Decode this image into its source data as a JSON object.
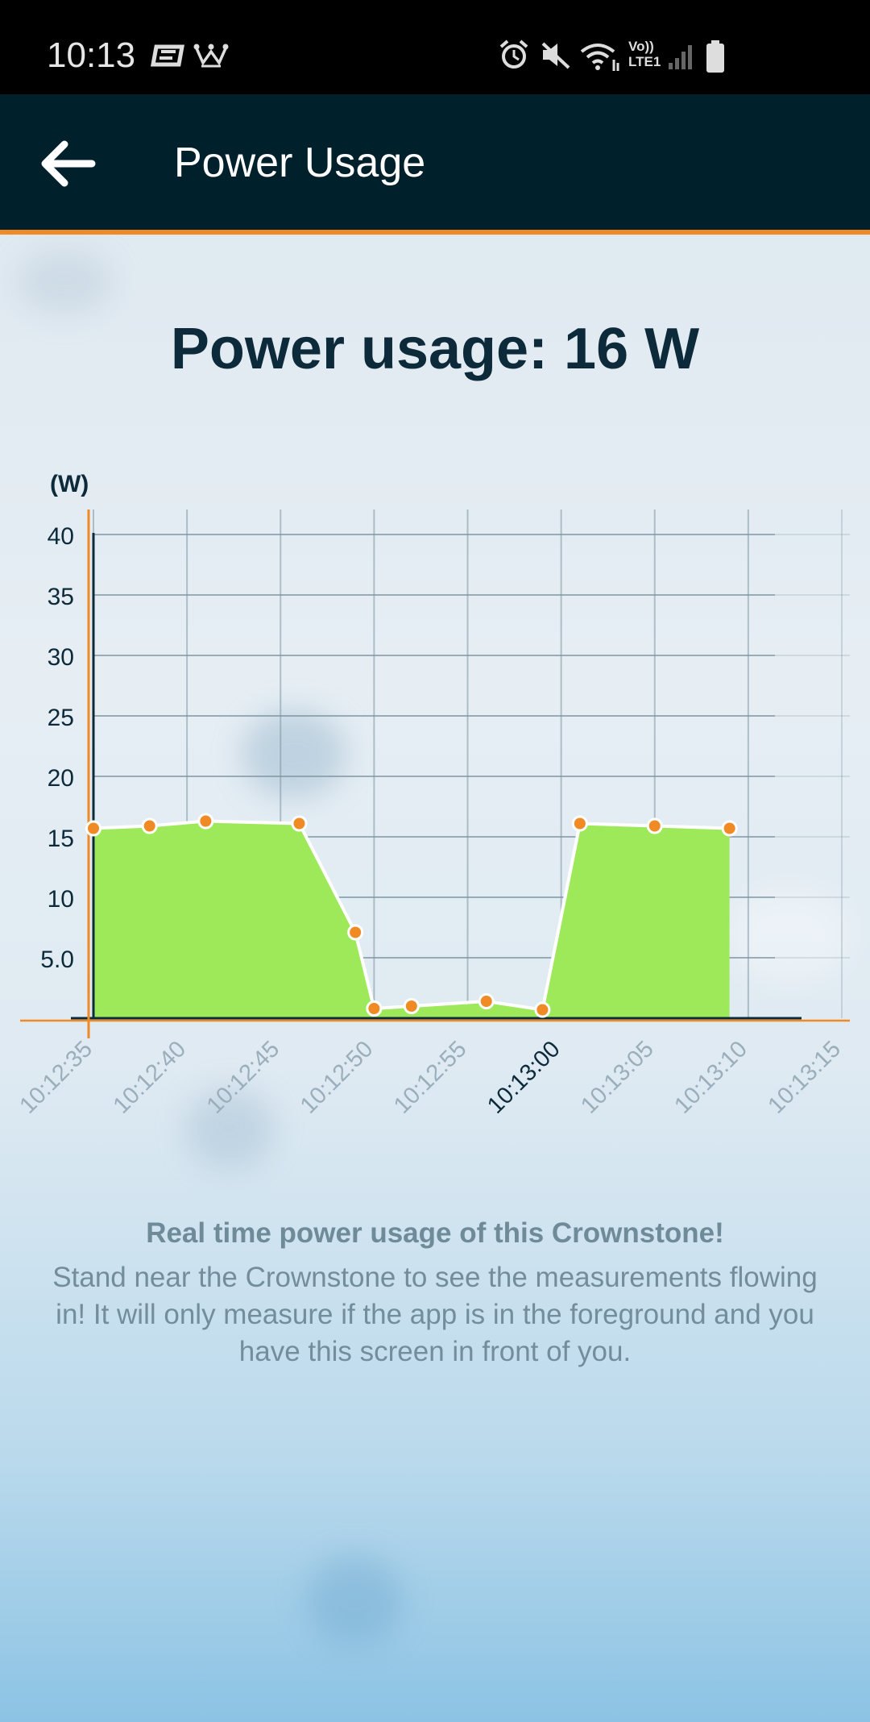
{
  "status_bar": {
    "time": "10:13",
    "network_label_top": "Vo))",
    "network_label_bottom": "LTE1"
  },
  "app_bar": {
    "title": "Power Usage",
    "back_icon": "arrow-left-icon"
  },
  "headline": "Power usage: 16 W",
  "chart_data": {
    "type": "area",
    "ylabel": "(W)",
    "ylim": [
      0,
      40
    ],
    "yticks": [
      "5.0",
      "10",
      "15",
      "20",
      "25",
      "30",
      "35",
      "40"
    ],
    "ytick_values": [
      5,
      10,
      15,
      20,
      25,
      30,
      35,
      40
    ],
    "xlim": [
      "10:12:35",
      "10:13:15"
    ],
    "xticks": [
      "10:12:35",
      "10:12:40",
      "10:12:45",
      "10:12:50",
      "10:12:55",
      "10:13:00",
      "10:13:05",
      "10:13:10",
      "10:13:15"
    ],
    "highlighted_xtick": "10:13:00",
    "x": [
      "10:12:35",
      "10:12:38",
      "10:12:41",
      "10:12:46",
      "10:12:49",
      "10:12:50",
      "10:12:52",
      "10:12:56",
      "10:12:59",
      "10:13:01",
      "10:13:05",
      "10:13:09"
    ],
    "series": [
      {
        "values": [
          15.7,
          15.9,
          16.3,
          16.1,
          7.1,
          0.8,
          1.0,
          1.4,
          0.7,
          16.1,
          15.9,
          15.7
        ]
      }
    ],
    "grid": true,
    "colors": {
      "fill": "#9ee95a",
      "line": "#ffffff",
      "point": "#f08a24",
      "axis_accent": "#f08a24",
      "grid": "#7f96a3",
      "tick_text": "#0c2a3a",
      "muted_tick_text": "#9aaebb"
    }
  },
  "description": {
    "title": "Real time power usage of this Crownstone!",
    "body": "Stand near the Crownstone to see the measurements flowing in! It will only measure if the app is in the foreground and you have this screen in front of you."
  }
}
